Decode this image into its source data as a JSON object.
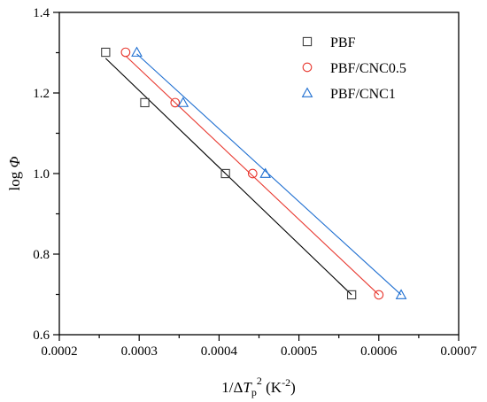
{
  "chart_data": {
    "type": "scatter",
    "title": "",
    "xlabel": {
      "prefix": "1/Δ",
      "var": "T",
      "sub": "p",
      "sup": "2",
      "unit": " (K",
      "unit_sup": "-2",
      "unit_close": ")"
    },
    "ylabel": {
      "prefix": "log ",
      "var": "Φ"
    },
    "xlim": [
      0.0002,
      0.0007
    ],
    "ylim": [
      0.6,
      1.4
    ],
    "xticks": [
      0.0002,
      0.0003,
      0.0004,
      0.0005,
      0.0006,
      0.0007
    ],
    "xtick_labels": [
      "0.0002",
      "0.0003",
      "0.0004",
      "0.0005",
      "0.0006",
      "0.0007"
    ],
    "yticks": [
      0.6,
      0.8,
      1.0,
      1.2,
      1.4
    ],
    "ytick_labels": [
      "0.6",
      "0.8",
      "1.0",
      "1.2",
      "1.4"
    ],
    "grid": false,
    "legend_position": "top-right",
    "series": [
      {
        "name": "PBF",
        "marker": "square",
        "color": "#404040",
        "line_color": "#000000",
        "x": [
          0.000258,
          0.000307,
          0.000408,
          0.000566
        ],
        "y": [
          1.301,
          1.176,
          1.0,
          0.699
        ],
        "fit": {
          "x": [
            0.000258,
            0.000566
          ],
          "y": [
            1.286,
            0.699
          ]
        }
      },
      {
        "name": "PBF/CNC0.5",
        "marker": "circle",
        "color": "#e8382f",
        "line_color": "#e8382f",
        "x": [
          0.000283,
          0.000345,
          0.000442,
          0.0006
        ],
        "y": [
          1.301,
          1.176,
          1.0,
          0.699
        ],
        "fit": {
          "x": [
            0.000283,
            0.0006
          ],
          "y": [
            1.292,
            0.699
          ]
        }
      },
      {
        "name": "PBF/CNC1",
        "marker": "triangle",
        "color": "#1f6fd1",
        "line_color": "#1f6fd1",
        "x": [
          0.000297,
          0.000355,
          0.000458,
          0.000628
        ],
        "y": [
          1.301,
          1.176,
          1.0,
          0.699
        ],
        "fit": {
          "x": [
            0.000297,
            0.000628
          ],
          "y": [
            1.297,
            0.699
          ]
        }
      }
    ]
  }
}
